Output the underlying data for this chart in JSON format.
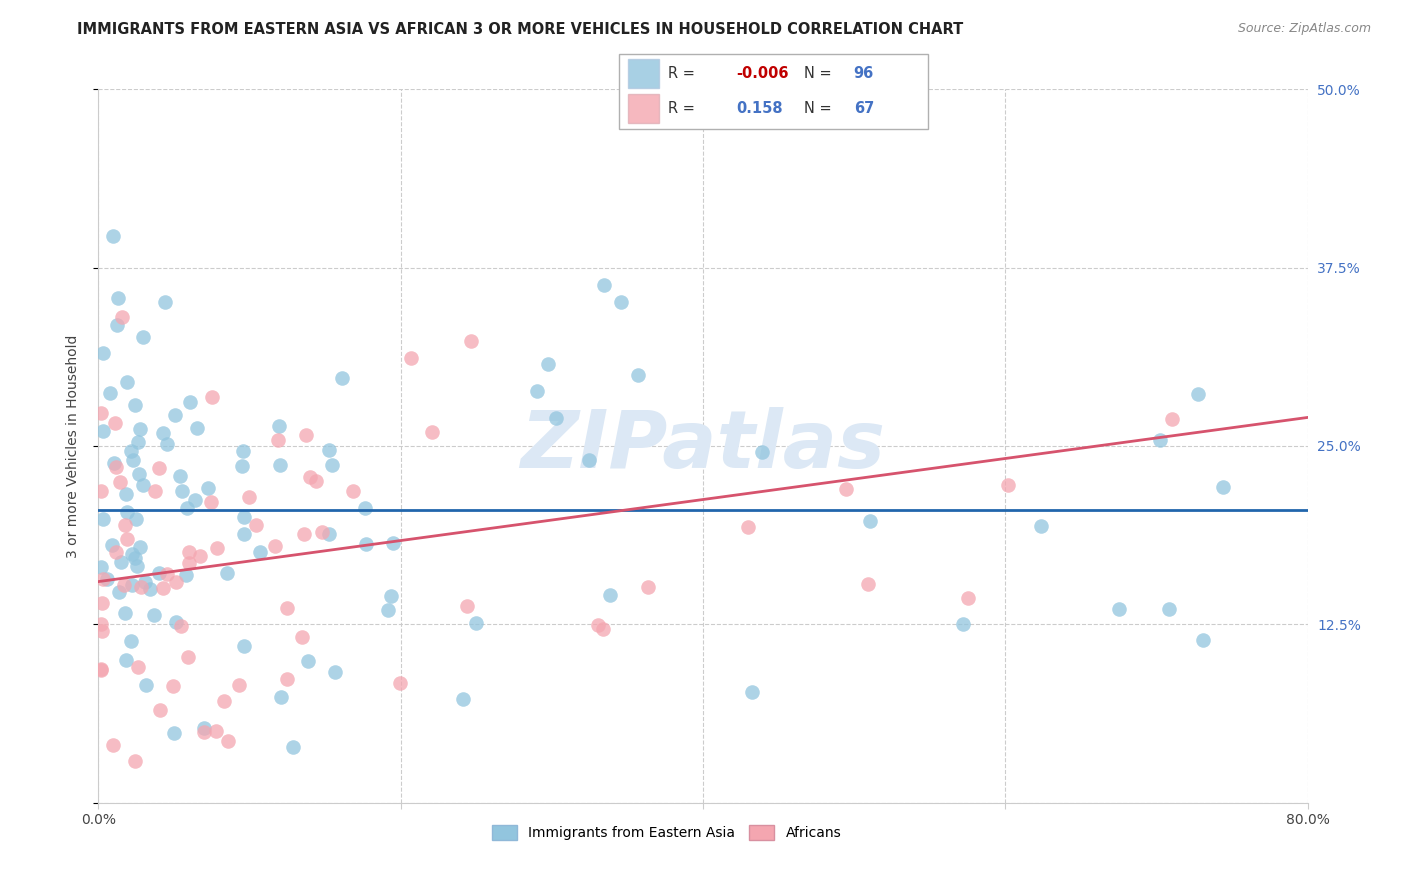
{
  "title": "IMMIGRANTS FROM EASTERN ASIA VS AFRICAN 3 OR MORE VEHICLES IN HOUSEHOLD CORRELATION CHART",
  "source": "Source: ZipAtlas.com",
  "ylabel": "3 or more Vehicles in Household",
  "legend_label_blue": "Immigrants from Eastern Asia",
  "legend_label_pink": "Africans",
  "R_blue": "-0.006",
  "N_blue": "96",
  "R_pink": "0.158",
  "N_pink": "67",
  "xmin": 0.0,
  "xmax": 0.8,
  "ymin": 0.0,
  "ymax": 0.5,
  "blue_line_start_y": 0.205,
  "blue_line_end_y": 0.205,
  "pink_line_start_y": 0.155,
  "pink_line_end_y": 0.27,
  "blue_color": "#92c5de",
  "pink_color": "#f4a6b0",
  "blue_line_color": "#2166ac",
  "pink_line_color": "#d6536d",
  "background_color": "#ffffff",
  "grid_color": "#cccccc",
  "title_color": "#222222",
  "right_tick_color": "#4472c4",
  "watermark": "ZIPatlas",
  "watermark_color": "#dce8f5"
}
